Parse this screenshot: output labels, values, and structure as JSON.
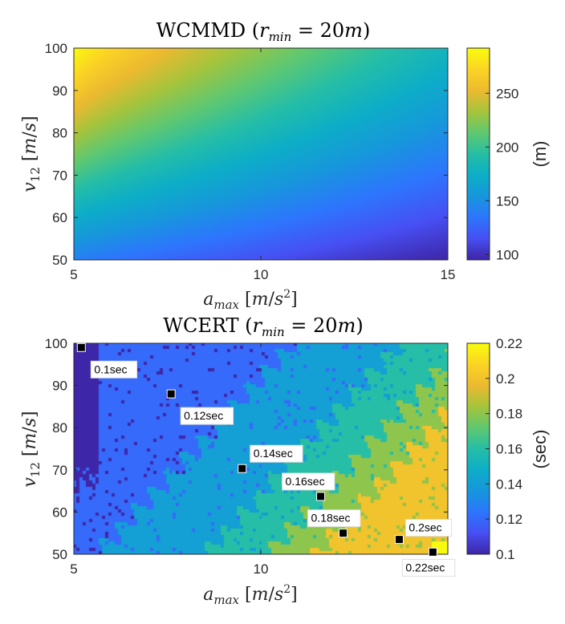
{
  "chart_data": [
    {
      "type": "heatmap",
      "title": "WCMMD (r_min = 20m)",
      "xlabel": "a_max [m/s^2]",
      "ylabel": "v_12 [m/s]",
      "xlim": [
        5,
        15
      ],
      "ylim": [
        50,
        100
      ],
      "xticks": [
        "5",
        "10",
        "15"
      ],
      "yticks": [
        "50",
        "60",
        "70",
        "80",
        "90",
        "100"
      ],
      "colorbar": {
        "label": "(m)",
        "range": [
          95,
          292
        ],
        "ticks": [
          "100",
          "150",
          "200",
          "250"
        ],
        "tick_values": [
          100,
          150,
          200,
          250
        ]
      },
      "colormap": "parula",
      "corner_values": {
        "x5_y100": 292,
        "x15_y100": 180,
        "x5_y50": 140,
        "x15_y50": 95
      }
    },
    {
      "type": "heatmap",
      "title": "WCERT (r_min = 20m)",
      "xlabel": "a_max [m/s^2]",
      "ylabel": "v_12 [m/s]",
      "xlim": [
        5,
        15
      ],
      "ylim": [
        50,
        100
      ],
      "xticks": [
        "5",
        "10",
        "15"
      ],
      "yticks": [
        "50",
        "60",
        "70",
        "80",
        "90",
        "100"
      ],
      "colorbar": {
        "label": "(sec)",
        "range": [
          0.1,
          0.22
        ],
        "ticks": [
          "0.1",
          "0.12",
          "0.14",
          "0.16",
          "0.18",
          "0.2",
          "0.22"
        ],
        "tick_values": [
          0.1,
          0.12,
          0.14,
          0.16,
          0.18,
          0.2,
          0.22
        ]
      },
      "colormap": "parula",
      "annotations": [
        {
          "x": 5.2,
          "y": 99,
          "label": "0.1sec"
        },
        {
          "x": 7.6,
          "y": 88,
          "label": "0.12sec"
        },
        {
          "x": 9.5,
          "y": 70.3,
          "label": "0.14sec"
        },
        {
          "x": 11.6,
          "y": 63.7,
          "label": "0.16sec"
        },
        {
          "x": 12.2,
          "y": 55,
          "label": "0.18sec"
        },
        {
          "x": 13.7,
          "y": 53.5,
          "label": "0.2sec"
        },
        {
          "x": 14.6,
          "y": 50.5,
          "label": "0.22sec"
        }
      ]
    }
  ]
}
